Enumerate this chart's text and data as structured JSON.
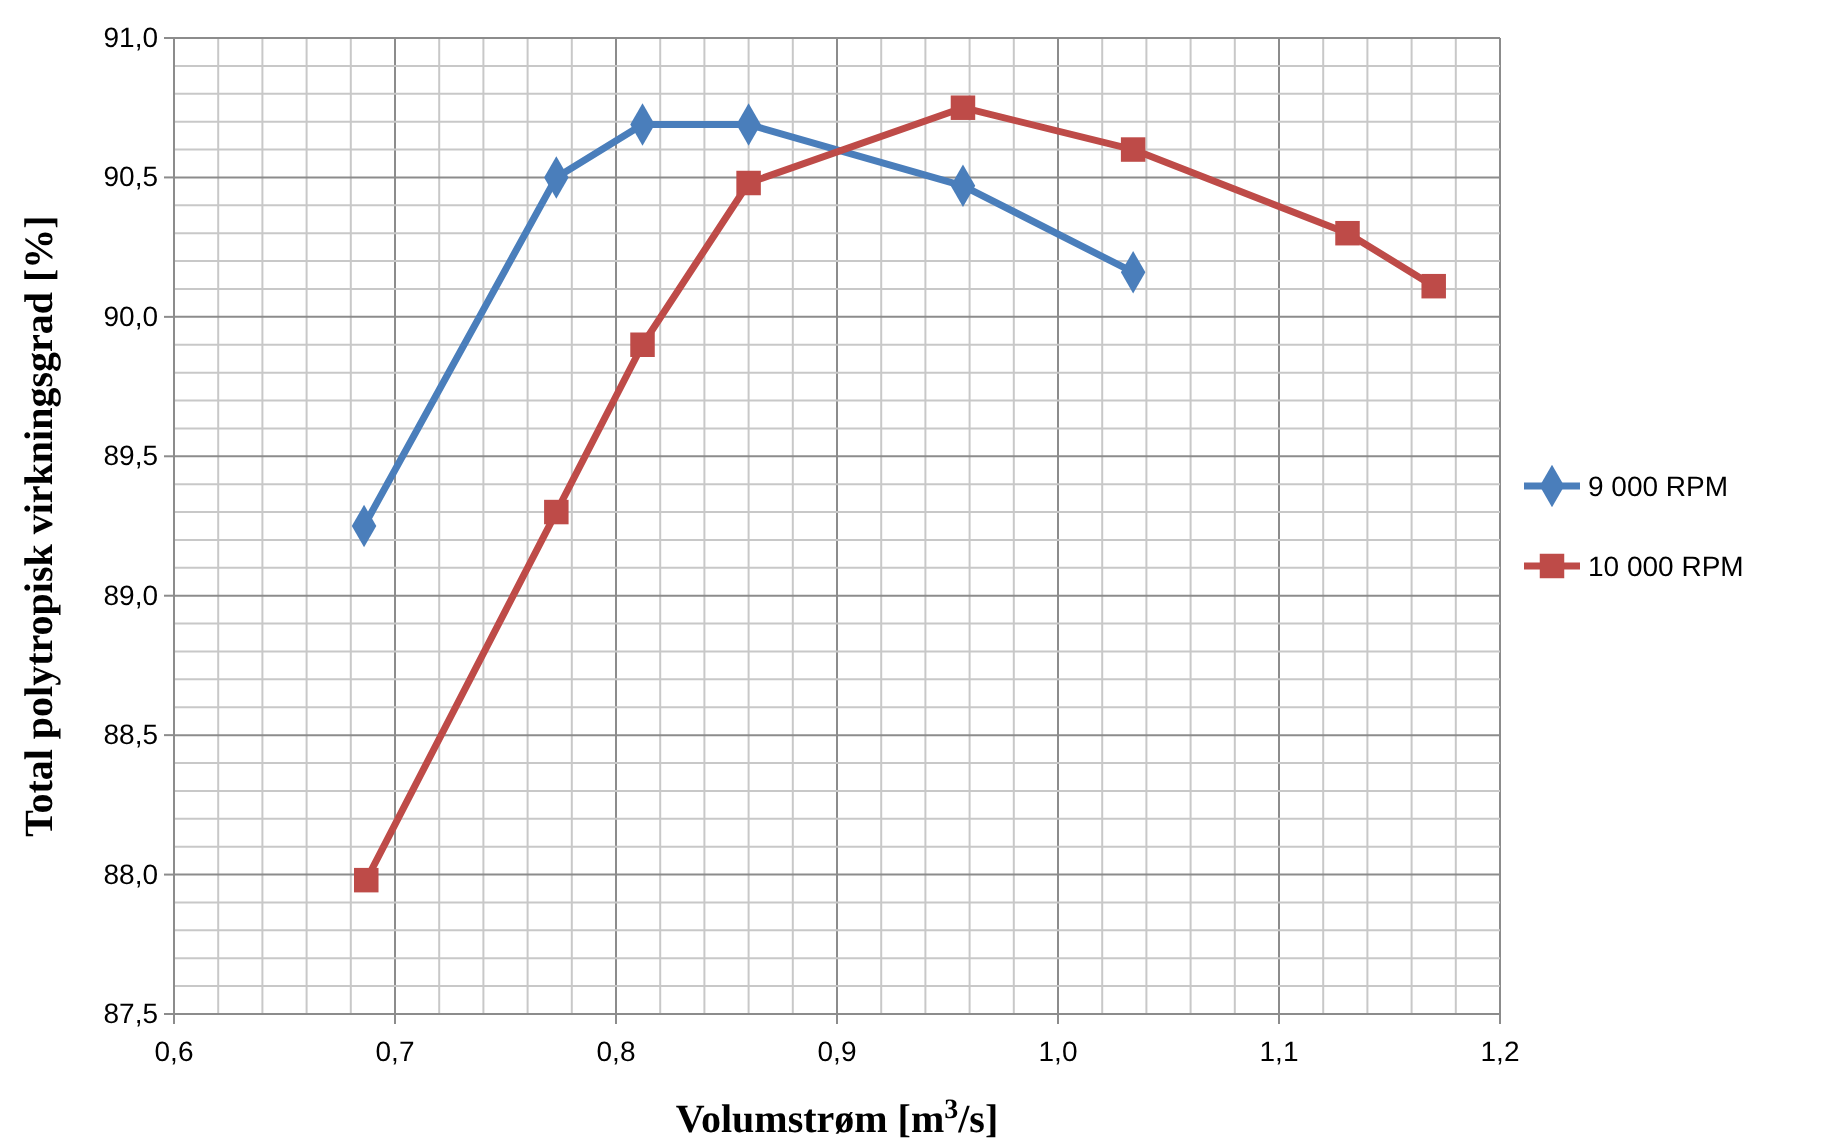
{
  "chart_data": {
    "type": "line",
    "xlabel": "Volumstrøm [m$^{3}$/s]",
    "ylabel": "Total polytropisk virkningsgrad [%]",
    "xlim": [
      0.6,
      1.2
    ],
    "ylim": [
      87.5,
      91.0
    ],
    "xticks": [
      {
        "value": 0.6,
        "label": "0,6"
      },
      {
        "value": 0.62,
        "label": null
      },
      {
        "value": 0.64,
        "label": null
      },
      {
        "value": 0.66,
        "label": null
      },
      {
        "value": 0.68,
        "label": null
      },
      {
        "value": 0.7,
        "label": "0,7"
      },
      {
        "value": 0.72,
        "label": null
      },
      {
        "value": 0.74,
        "label": null
      },
      {
        "value": 0.76,
        "label": null
      },
      {
        "value": 0.78,
        "label": null
      },
      {
        "value": 0.8,
        "label": "0,8"
      },
      {
        "value": 0.82,
        "label": null
      },
      {
        "value": 0.84,
        "label": null
      },
      {
        "value": 0.86,
        "label": null
      },
      {
        "value": 0.88,
        "label": null
      },
      {
        "value": 0.9,
        "label": "0,9"
      },
      {
        "value": 0.92,
        "label": null
      },
      {
        "value": 0.94,
        "label": null
      },
      {
        "value": 0.96,
        "label": null
      },
      {
        "value": 0.98,
        "label": null
      },
      {
        "value": 1.0,
        "label": "1,0"
      },
      {
        "value": 1.02,
        "label": null
      },
      {
        "value": 1.04,
        "label": null
      },
      {
        "value": 1.06,
        "label": null
      },
      {
        "value": 1.08,
        "label": null
      },
      {
        "value": 1.1,
        "label": "1,1"
      },
      {
        "value": 1.12,
        "label": null
      },
      {
        "value": 1.14,
        "label": null
      },
      {
        "value": 1.16,
        "label": null
      },
      {
        "value": 1.18,
        "label": null
      },
      {
        "value": 1.2,
        "label": "1,2"
      }
    ],
    "yticks": [
      {
        "value": 87.5,
        "label": "87,5"
      },
      {
        "value": 87.6,
        "label": null
      },
      {
        "value": 87.7,
        "label": null
      },
      {
        "value": 87.8,
        "label": null
      },
      {
        "value": 87.9,
        "label": null
      },
      {
        "value": 88.0,
        "label": "88,0"
      },
      {
        "value": 88.1,
        "label": null
      },
      {
        "value": 88.2,
        "label": null
      },
      {
        "value": 88.3,
        "label": null
      },
      {
        "value": 88.4,
        "label": null
      },
      {
        "value": 88.5,
        "label": "88,5"
      },
      {
        "value": 88.6,
        "label": null
      },
      {
        "value": 88.7,
        "label": null
      },
      {
        "value": 88.8,
        "label": null
      },
      {
        "value": 88.9,
        "label": null
      },
      {
        "value": 89.0,
        "label": "89,0"
      },
      {
        "value": 89.1,
        "label": null
      },
      {
        "value": 89.2,
        "label": null
      },
      {
        "value": 89.3,
        "label": null
      },
      {
        "value": 89.4,
        "label": null
      },
      {
        "value": 89.5,
        "label": "89,5"
      },
      {
        "value": 89.6,
        "label": null
      },
      {
        "value": 89.7,
        "label": null
      },
      {
        "value": 89.8,
        "label": null
      },
      {
        "value": 89.9,
        "label": null
      },
      {
        "value": 90.0,
        "label": "90,0"
      },
      {
        "value": 90.1,
        "label": null
      },
      {
        "value": 90.2,
        "label": null
      },
      {
        "value": 90.3,
        "label": null
      },
      {
        "value": 90.4,
        "label": null
      },
      {
        "value": 90.5,
        "label": "90,5"
      },
      {
        "value": 90.6,
        "label": null
      },
      {
        "value": 90.7,
        "label": null
      },
      {
        "value": 90.8,
        "label": null
      },
      {
        "value": 90.9,
        "label": null
      },
      {
        "value": 91.0,
        "label": "91,0"
      }
    ],
    "grid": true,
    "legend": "right",
    "line_style": "solid",
    "series": [
      {
        "name": "9 000 RPM",
        "color": "#4a7ebb",
        "marker": "diamond",
        "x": [
          0.686,
          0.773,
          0.812,
          0.86,
          0.957,
          1.034
        ],
        "values": [
          89.25,
          90.5,
          90.69,
          90.69,
          90.47,
          90.16
        ]
      },
      {
        "name": "10 000 RPM",
        "color": "#be4b48",
        "marker": "square",
        "x": [
          0.687,
          0.773,
          0.812,
          0.86,
          0.957,
          1.034,
          1.131,
          1.17
        ],
        "values": [
          87.98,
          89.3,
          89.9,
          90.48,
          90.75,
          90.6,
          90.3,
          90.11
        ]
      }
    ]
  }
}
